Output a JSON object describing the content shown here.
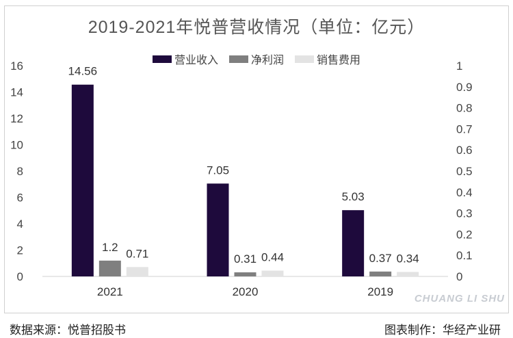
{
  "chart_data": {
    "type": "bar",
    "title": "2019-2021年悦普营收情况（单位：亿元）",
    "categories": [
      "2021",
      "2020",
      "2019"
    ],
    "series": [
      {
        "name": "营业收入",
        "values": [
          14.56,
          7.05,
          5.03
        ],
        "labels": [
          "14.56",
          "7.05",
          "5.03"
        ],
        "color": "#1e0a3c"
      },
      {
        "name": "净利润",
        "values": [
          1.2,
          0.31,
          0.37
        ],
        "labels": [
          "1.2",
          "0.31",
          "0.37"
        ],
        "color": "#7f7f7f"
      },
      {
        "name": "销售费用",
        "values": [
          0.71,
          0.44,
          0.34
        ],
        "labels": [
          "0.71",
          "0.44",
          "0.34"
        ],
        "color": "#e3e3e3"
      }
    ],
    "ylim": [
      0,
      16
    ],
    "yticks": [
      "0",
      "2",
      "4",
      "6",
      "8",
      "10",
      "12",
      "14",
      "16"
    ],
    "y2lim": [
      0,
      1
    ],
    "y2ticks": [
      "0",
      "0.1",
      "0.2",
      "0.3",
      "0.4",
      "0.5",
      "0.6",
      "0.7",
      "0.8",
      "0.9",
      "1"
    ],
    "grid": false,
    "legend_position": "top"
  },
  "footer": {
    "source": "数据来源：悦普招股书",
    "credit": "图表制作：华经产业研"
  },
  "watermark": "CHUANG LI SHU"
}
